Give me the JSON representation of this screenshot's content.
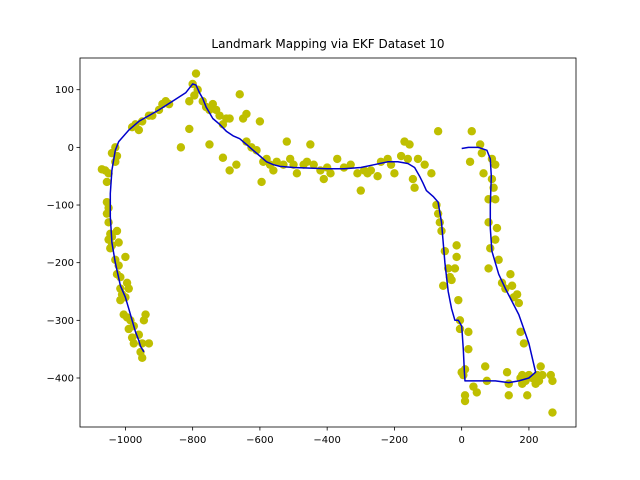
{
  "chart_data": {
    "type": "scatter",
    "title": "Landmark Mapping via EKF Dataset 10",
    "xlabel": "",
    "ylabel": "",
    "xlim": [
      -1135,
      340
    ],
    "ylim": [
      -485,
      155
    ],
    "xticks": [
      -1000,
      -800,
      -600,
      -400,
      -200,
      0,
      200
    ],
    "yticks": [
      -400,
      -300,
      -200,
      -100,
      0,
      100
    ],
    "grid": false,
    "colors": {
      "landmarks": "#bfbf00",
      "trajectory": "#0000cc"
    },
    "series": [
      {
        "kind": "scatter",
        "points": [
          [
            -1070,
            -38
          ],
          [
            -1060,
            -40
          ],
          [
            -1055,
            -60
          ],
          [
            -1050,
            -45
          ],
          [
            -1040,
            -10
          ],
          [
            -1030,
            -25
          ],
          [
            -1030,
            0
          ],
          [
            -1025,
            -15
          ],
          [
            -1055,
            -95
          ],
          [
            -1050,
            -105
          ],
          [
            -1055,
            -115
          ],
          [
            -1050,
            -130
          ],
          [
            -1045,
            -150
          ],
          [
            -1040,
            -155
          ],
          [
            -1050,
            -160
          ],
          [
            -1045,
            -175
          ],
          [
            -1040,
            -170
          ],
          [
            -1025,
            -145
          ],
          [
            -1020,
            -165
          ],
          [
            -1030,
            -195
          ],
          [
            -1020,
            -205
          ],
          [
            -1025,
            -220
          ],
          [
            -1015,
            -225
          ],
          [
            -1015,
            -245
          ],
          [
            -1010,
            -255
          ],
          [
            -1015,
            -265
          ],
          [
            -1000,
            -260
          ],
          [
            -1005,
            -290
          ],
          [
            -995,
            -295
          ],
          [
            -1000,
            -190
          ],
          [
            -995,
            -235
          ],
          [
            -990,
            -245
          ],
          [
            -985,
            -300
          ],
          [
            -990,
            -315
          ],
          [
            -980,
            -330
          ],
          [
            -975,
            -340
          ],
          [
            -975,
            -310
          ],
          [
            -960,
            -325
          ],
          [
            -950,
            -340
          ],
          [
            -955,
            -355
          ],
          [
            -950,
            -365
          ],
          [
            -945,
            -300
          ],
          [
            -940,
            -290
          ],
          [
            -930,
            -340
          ],
          [
            -980,
            35
          ],
          [
            -970,
            40
          ],
          [
            -960,
            30
          ],
          [
            -950,
            45
          ],
          [
            -930,
            55
          ],
          [
            -920,
            55
          ],
          [
            -900,
            65
          ],
          [
            -890,
            75
          ],
          [
            -880,
            80
          ],
          [
            -870,
            75
          ],
          [
            -835,
            0
          ],
          [
            -810,
            32
          ],
          [
            -810,
            80
          ],
          [
            -800,
            110
          ],
          [
            -795,
            90
          ],
          [
            -790,
            128
          ],
          [
            -785,
            100
          ],
          [
            -770,
            80
          ],
          [
            -760,
            70
          ],
          [
            -750,
            65
          ],
          [
            -740,
            75
          ],
          [
            -730,
            65
          ],
          [
            -720,
            55
          ],
          [
            -710,
            40
          ],
          [
            -700,
            50
          ],
          [
            -690,
            50
          ],
          [
            -750,
            5
          ],
          [
            -710,
            -18
          ],
          [
            -690,
            -40
          ],
          [
            -670,
            -30
          ],
          [
            -660,
            92
          ],
          [
            -650,
            50
          ],
          [
            -640,
            58
          ],
          [
            -640,
            10
          ],
          [
            -625,
            0
          ],
          [
            -610,
            -5
          ],
          [
            -600,
            45
          ],
          [
            -595,
            -60
          ],
          [
            -590,
            -25
          ],
          [
            -580,
            -20
          ],
          [
            -570,
            -30
          ],
          [
            -560,
            -40
          ],
          [
            -550,
            -25
          ],
          [
            -530,
            -30
          ],
          [
            -520,
            10
          ],
          [
            -510,
            -20
          ],
          [
            -500,
            -30
          ],
          [
            -490,
            -45
          ],
          [
            -470,
            -30
          ],
          [
            -460,
            -25
          ],
          [
            -450,
            5
          ],
          [
            -440,
            -30
          ],
          [
            -420,
            -40
          ],
          [
            -410,
            -55
          ],
          [
            -400,
            -35
          ],
          [
            -390,
            -45
          ],
          [
            -370,
            -20
          ],
          [
            -350,
            -35
          ],
          [
            -330,
            -30
          ],
          [
            -310,
            -45
          ],
          [
            -300,
            -75
          ],
          [
            -290,
            -40
          ],
          [
            -280,
            -45
          ],
          [
            -270,
            -40
          ],
          [
            -250,
            -50
          ],
          [
            -240,
            -25
          ],
          [
            -220,
            -20
          ],
          [
            -210,
            -30
          ],
          [
            -200,
            -45
          ],
          [
            -180,
            -15
          ],
          [
            -170,
            10
          ],
          [
            -160,
            -20
          ],
          [
            -155,
            5
          ],
          [
            -145,
            -55
          ],
          [
            -140,
            -70
          ],
          [
            -130,
            -20
          ],
          [
            -110,
            -30
          ],
          [
            -90,
            -45
          ],
          [
            -70,
            28
          ],
          [
            -75,
            -100
          ],
          [
            -70,
            -115
          ],
          [
            -65,
            -130
          ],
          [
            -60,
            -145
          ],
          [
            -55,
            -240
          ],
          [
            -50,
            -180
          ],
          [
            -40,
            -210
          ],
          [
            -35,
            -225
          ],
          [
            -30,
            -230
          ],
          [
            -20,
            -210
          ],
          [
            -15,
            -170
          ],
          [
            -15,
            -190
          ],
          [
            -10,
            -265
          ],
          [
            -5,
            -300
          ],
          [
            -5,
            -315
          ],
          [
            0,
            -390
          ],
          [
            5,
            -395
          ],
          [
            10,
            -430
          ],
          [
            10,
            -440
          ],
          [
            10,
            -385
          ],
          [
            20,
            -350
          ],
          [
            20,
            -320
          ],
          [
            25,
            -25
          ],
          [
            30,
            28
          ],
          [
            35,
            -415
          ],
          [
            45,
            -425
          ],
          [
            55,
            5
          ],
          [
            60,
            -10
          ],
          [
            65,
            -45
          ],
          [
            70,
            -380
          ],
          [
            75,
            -405
          ],
          [
            80,
            -210
          ],
          [
            80,
            -90
          ],
          [
            80,
            -130
          ],
          [
            85,
            -175
          ],
          [
            90,
            -20
          ],
          [
            90,
            -55
          ],
          [
            95,
            -70
          ],
          [
            100,
            -90
          ],
          [
            100,
            -30
          ],
          [
            100,
            -160
          ],
          [
            105,
            -140
          ],
          [
            110,
            -195
          ],
          [
            120,
            -235
          ],
          [
            130,
            -245
          ],
          [
            135,
            -390
          ],
          [
            140,
            -430
          ],
          [
            140,
            -410
          ],
          [
            145,
            -220
          ],
          [
            150,
            -240
          ],
          [
            155,
            -260
          ],
          [
            165,
            -255
          ],
          [
            170,
            -270
          ],
          [
            175,
            -320
          ],
          [
            175,
            -400
          ],
          [
            180,
            -410
          ],
          [
            180,
            -395
          ],
          [
            185,
            -340
          ],
          [
            190,
            -405
          ],
          [
            195,
            -430
          ],
          [
            200,
            -395
          ],
          [
            210,
            -400
          ],
          [
            220,
            -410
          ],
          [
            225,
            -395
          ],
          [
            230,
            -405
          ],
          [
            235,
            -380
          ],
          [
            240,
            -395
          ],
          [
            265,
            -395
          ],
          [
            270,
            -405
          ],
          [
            270,
            -460
          ]
        ]
      },
      {
        "kind": "line",
        "points": [
          [
            -1030,
            -5
          ],
          [
            -1020,
            10
          ],
          [
            -990,
            30
          ],
          [
            -960,
            45
          ],
          [
            -900,
            65
          ],
          [
            -860,
            80
          ],
          [
            -820,
            95
          ],
          [
            -800,
            110
          ],
          [
            -790,
            108
          ],
          [
            -780,
            95
          ],
          [
            -770,
            85
          ],
          [
            -760,
            70
          ],
          [
            -740,
            50
          ],
          [
            -720,
            40
          ],
          [
            -700,
            28
          ],
          [
            -680,
            20
          ],
          [
            -660,
            15
          ],
          [
            -640,
            5
          ],
          [
            -620,
            -5
          ],
          [
            -600,
            -15
          ],
          [
            -580,
            -25
          ],
          [
            -560,
            -30
          ],
          [
            -540,
            -33
          ],
          [
            -500,
            -35
          ],
          [
            -450,
            -36
          ],
          [
            -400,
            -37
          ],
          [
            -350,
            -37
          ],
          [
            -300,
            -35
          ],
          [
            -260,
            -30
          ],
          [
            -220,
            -25
          ],
          [
            -190,
            -25
          ],
          [
            -160,
            -28
          ],
          [
            -140,
            -35
          ],
          [
            -125,
            -50
          ],
          [
            -115,
            -62
          ],
          [
            -105,
            -75
          ],
          [
            -85,
            -85
          ],
          [
            -70,
            -95
          ],
          [
            -60,
            -130
          ],
          [
            -50,
            -200
          ],
          [
            -40,
            -250
          ],
          [
            -30,
            -280
          ],
          [
            -20,
            -300
          ],
          [
            -10,
            -300
          ],
          [
            0,
            -310
          ],
          [
            5,
            -350
          ],
          [
            8,
            -390
          ],
          [
            10,
            -405
          ],
          [
            30,
            -405
          ],
          [
            60,
            -405
          ],
          [
            100,
            -405
          ],
          [
            140,
            -408
          ],
          [
            170,
            -405
          ],
          [
            200,
            -400
          ],
          [
            220,
            -390
          ],
          [
            200,
            -340
          ],
          [
            170,
            -290
          ],
          [
            130,
            -245
          ],
          [
            110,
            -220
          ],
          [
            90,
            -180
          ],
          [
            85,
            -140
          ],
          [
            85,
            -100
          ],
          [
            88,
            -50
          ],
          [
            85,
            -20
          ],
          [
            75,
            -5
          ],
          [
            50,
            0
          ],
          [
            20,
            0
          ],
          [
            0,
            -2
          ]
        ]
      },
      {
        "kind": "line",
        "points": [
          [
            -1030,
            -5
          ],
          [
            -1040,
            -40
          ],
          [
            -1045,
            -80
          ],
          [
            -1045,
            -120
          ],
          [
            -1040,
            -165
          ],
          [
            -1030,
            -200
          ],
          [
            -1015,
            -240
          ],
          [
            -1000,
            -260
          ],
          [
            -990,
            -280
          ],
          [
            -980,
            -300
          ],
          [
            -970,
            -320
          ],
          [
            -960,
            -335
          ],
          [
            -955,
            -345
          ],
          [
            -945,
            -355
          ]
        ]
      }
    ]
  }
}
